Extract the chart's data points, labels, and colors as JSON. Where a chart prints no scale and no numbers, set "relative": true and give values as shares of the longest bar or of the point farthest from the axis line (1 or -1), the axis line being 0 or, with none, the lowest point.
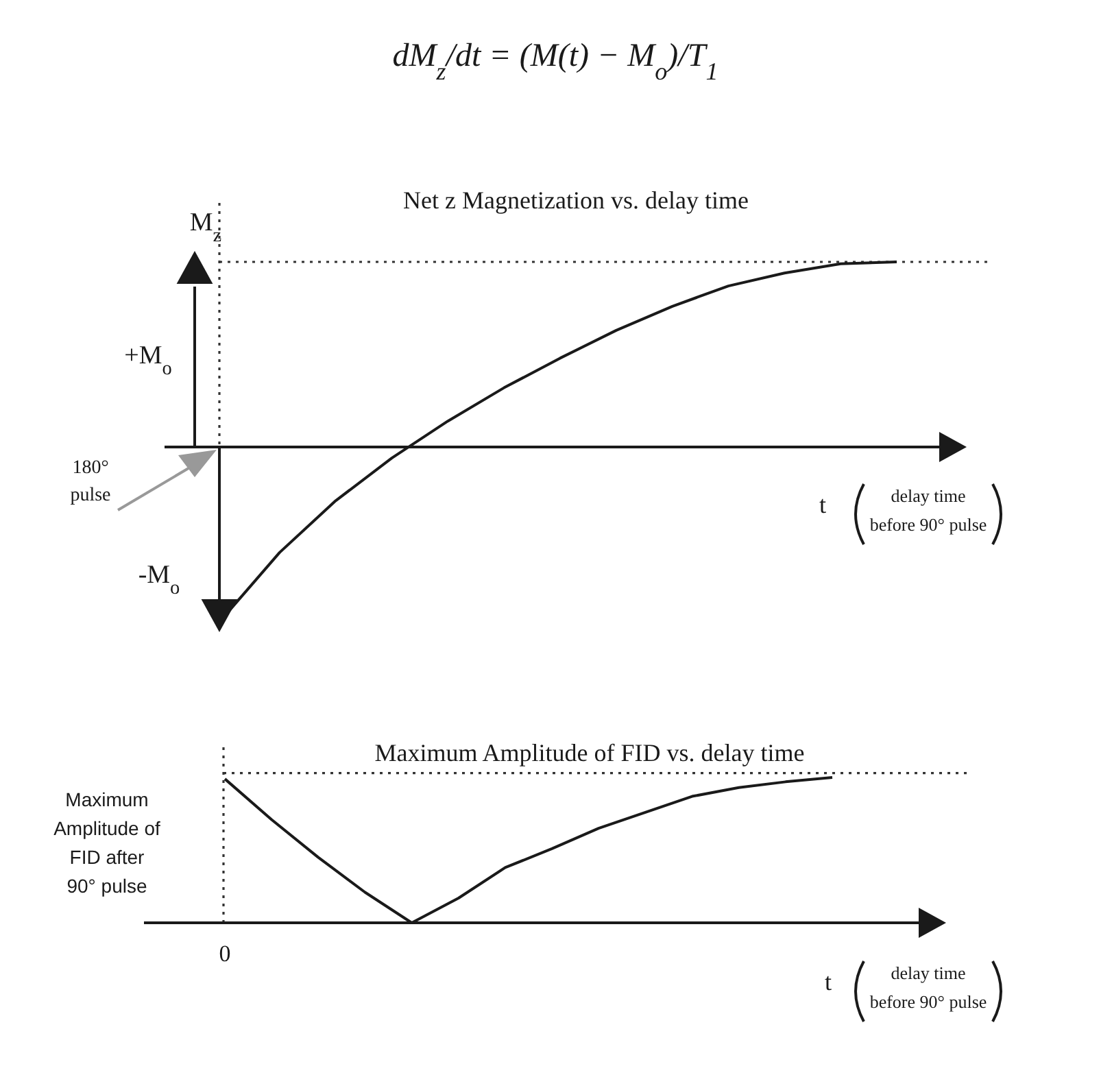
{
  "chart_data": [
    {
      "type": "line",
      "title": "Net z Magnetization vs. delay time",
      "ylabel": "M$_{z}$",
      "xlabel": "t",
      "relative": true,
      "categories": [
        null,
        null,
        null,
        null,
        null,
        null,
        null,
        null,
        null,
        null,
        null,
        null,
        null
      ],
      "series": [
        {
          "color": "#1a1a1a",
          "values": [
            -0.92,
            -0.57,
            -0.29,
            -0.06,
            0.14,
            0.32,
            0.48,
            0.63,
            0.76,
            0.87,
            0.94,
            0.99,
            1.0
          ]
        }
      ],
      "ref_lines": [
        {
          "axis": "y",
          "value": 1,
          "line_style": "dotted"
        }
      ],
      "annotations": [
        "dM$_{z}$/dt = (M(t) − M$_{o}$)/T$_{1}$",
        "+M$_{o}$",
        "-M$_{o}$",
        "180° pulse",
        "delay time before 90° pulse"
      ]
    },
    {
      "type": "line",
      "title": "Maximum Amplitude of FID vs. delay time",
      "ylabel": "Maximum Amplitude of FID after 90° pulse",
      "xlabel": "t",
      "relative": true,
      "categories": [
        null,
        null,
        null,
        null,
        null,
        null,
        null,
        null,
        null,
        null,
        null,
        null,
        null,
        null
      ],
      "series": [
        {
          "color": "#1a1a1a",
          "values": [
            0.99,
            0.71,
            0.45,
            0.21,
            0,
            0.17,
            0.38,
            0.51,
            0.65,
            0.76,
            0.87,
            0.93,
            0.97,
            1.0
          ]
        }
      ],
      "ref_lines": [
        {
          "axis": "y",
          "value": 1.03,
          "line_style": "dotted"
        }
      ],
      "annotations": [
        "0",
        "delay time before 90° pulse"
      ]
    }
  ]
}
